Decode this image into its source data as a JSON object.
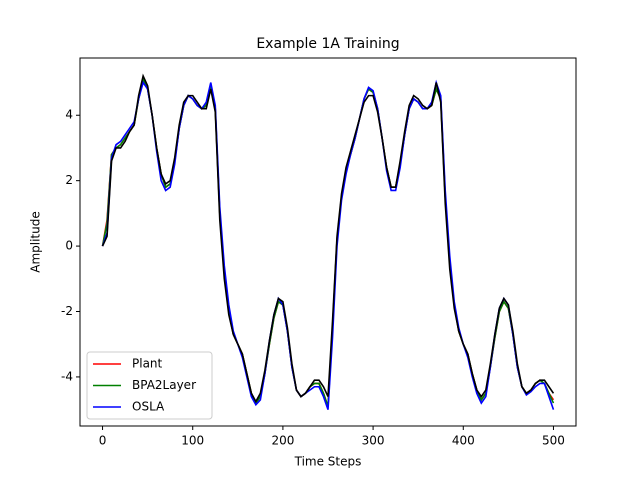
{
  "chart_data": {
    "type": "line",
    "title": "Example 1A Training",
    "xlabel": "Time Steps",
    "ylabel": "Amplitude",
    "x": [
      0,
      5,
      10,
      15,
      20,
      25,
      30,
      35,
      40,
      45,
      50,
      55,
      60,
      65,
      70,
      75,
      80,
      85,
      90,
      95,
      100,
      105,
      110,
      115,
      120,
      125,
      130,
      135,
      140,
      145,
      150,
      155,
      160,
      165,
      170,
      175,
      180,
      185,
      190,
      195,
      200,
      205,
      210,
      215,
      220,
      225,
      230,
      235,
      240,
      245,
      250,
      255,
      260,
      265,
      270,
      275,
      280,
      285,
      290,
      295,
      300,
      305,
      310,
      315,
      320,
      325,
      330,
      335,
      340,
      345,
      350,
      355,
      360,
      365,
      370,
      375,
      380,
      385,
      390,
      395,
      400,
      405,
      410,
      415,
      420,
      425,
      430,
      435,
      440,
      445,
      450,
      455,
      460,
      465,
      470,
      475,
      480,
      485,
      490,
      495,
      500
    ],
    "series": [
      {
        "name": "Plant",
        "color": "#ff0000",
        "values": [
          0,
          0.8,
          2.8,
          3.0,
          3.1,
          3.3,
          3.5,
          3.7,
          4.5,
          5.1,
          4.8,
          4.0,
          3.0,
          2.2,
          1.8,
          1.9,
          2.6,
          3.6,
          4.3,
          4.6,
          4.5,
          4.3,
          4.2,
          4.3,
          4.9,
          4.2,
          1.0,
          -0.8,
          -2.0,
          -2.7,
          -3.0,
          -3.3,
          -3.9,
          -4.5,
          -4.8,
          -4.6,
          -3.9,
          -3.0,
          -2.2,
          -1.7,
          -1.8,
          -2.6,
          -3.7,
          -4.4,
          -4.6,
          -4.5,
          -4.3,
          -4.2,
          -4.2,
          -4.5,
          -4.9,
          -2.5,
          0.2,
          1.5,
          2.3,
          2.8,
          3.3,
          3.9,
          4.5,
          4.8,
          4.7,
          4.2,
          3.3,
          2.4,
          1.8,
          1.8,
          2.5,
          3.4,
          4.2,
          4.5,
          4.4,
          4.2,
          4.2,
          4.3,
          4.8,
          4.5,
          1.5,
          -0.5,
          -1.8,
          -2.6,
          -3.0,
          -3.3,
          -3.9,
          -4.4,
          -4.7,
          -4.5,
          -3.7,
          -2.8,
          -2.0,
          -1.7,
          -1.9,
          -2.7,
          -3.7,
          -4.3,
          -4.5,
          -4.4,
          -4.2,
          -4.1,
          -4.2,
          -4.5,
          -4.7
        ]
      },
      {
        "name": "BPA2Layer",
        "color": "#008000",
        "values": [
          0,
          0.7,
          2.8,
          3.0,
          3.1,
          3.3,
          3.5,
          3.7,
          4.5,
          5.1,
          4.8,
          4.0,
          3.0,
          2.2,
          1.8,
          1.9,
          2.6,
          3.6,
          4.3,
          4.6,
          4.5,
          4.3,
          4.2,
          4.3,
          4.9,
          4.2,
          1.0,
          -0.8,
          -2.0,
          -2.7,
          -3.0,
          -3.3,
          -3.9,
          -4.5,
          -4.8,
          -4.6,
          -3.9,
          -3.0,
          -2.2,
          -1.7,
          -1.8,
          -2.6,
          -3.7,
          -4.4,
          -4.6,
          -4.5,
          -4.3,
          -4.2,
          -4.2,
          -4.5,
          -4.9,
          -2.5,
          0.2,
          1.5,
          2.3,
          2.8,
          3.3,
          3.9,
          4.5,
          4.8,
          4.7,
          4.2,
          3.3,
          2.4,
          1.8,
          1.8,
          2.5,
          3.4,
          4.2,
          4.5,
          4.4,
          4.2,
          4.2,
          4.3,
          4.8,
          4.5,
          1.5,
          -0.5,
          -1.8,
          -2.6,
          -3.0,
          -3.3,
          -3.9,
          -4.4,
          -4.7,
          -4.5,
          -3.7,
          -2.8,
          -2.0,
          -1.7,
          -1.9,
          -2.7,
          -3.7,
          -4.3,
          -4.5,
          -4.4,
          -4.2,
          -4.1,
          -4.2,
          -4.5,
          -4.8
        ]
      },
      {
        "name": "OSLA",
        "color": "#0000ff",
        "values": [
          0,
          0.4,
          2.7,
          3.1,
          3.2,
          3.4,
          3.6,
          3.8,
          4.5,
          5.0,
          4.8,
          4.0,
          2.9,
          2.0,
          1.7,
          1.8,
          2.5,
          3.6,
          4.3,
          4.6,
          4.5,
          4.3,
          4.2,
          4.4,
          5.0,
          4.3,
          1.2,
          -0.6,
          -1.8,
          -2.6,
          -3.0,
          -3.4,
          -4.0,
          -4.6,
          -4.85,
          -4.7,
          -3.9,
          -2.9,
          -2.1,
          -1.6,
          -1.8,
          -2.6,
          -3.7,
          -4.4,
          -4.6,
          -4.5,
          -4.4,
          -4.3,
          -4.3,
          -4.6,
          -5.0,
          -2.8,
          0.0,
          1.4,
          2.2,
          2.8,
          3.3,
          3.9,
          4.5,
          4.85,
          4.75,
          4.2,
          3.3,
          2.3,
          1.7,
          1.7,
          2.4,
          3.4,
          4.2,
          4.5,
          4.4,
          4.2,
          4.2,
          4.4,
          5.0,
          4.6,
          1.7,
          -0.3,
          -1.7,
          -2.5,
          -3.0,
          -3.4,
          -4.0,
          -4.5,
          -4.8,
          -4.6,
          -3.7,
          -2.7,
          -1.9,
          -1.6,
          -1.8,
          -2.7,
          -3.7,
          -4.3,
          -4.55,
          -4.45,
          -4.3,
          -4.2,
          -4.2,
          -4.6,
          -5.0
        ]
      },
      {
        "color": "#000000",
        "values": [
          0,
          0.3,
          2.6,
          3.0,
          3.0,
          3.2,
          3.5,
          3.7,
          4.6,
          5.2,
          4.9,
          4.0,
          3.0,
          2.2,
          1.9,
          2.0,
          2.7,
          3.7,
          4.4,
          4.6,
          4.6,
          4.4,
          4.2,
          4.2,
          4.8,
          4.1,
          0.8,
          -1.0,
          -2.1,
          -2.7,
          -3.0,
          -3.3,
          -3.9,
          -4.5,
          -4.75,
          -4.5,
          -3.8,
          -2.9,
          -2.1,
          -1.6,
          -1.7,
          -2.5,
          -3.6,
          -4.4,
          -4.6,
          -4.5,
          -4.3,
          -4.1,
          -4.1,
          -4.3,
          -4.6,
          -2.3,
          0.3,
          1.6,
          2.4,
          2.9,
          3.4,
          3.9,
          4.4,
          4.6,
          4.6,
          4.1,
          3.3,
          2.4,
          1.8,
          1.8,
          2.6,
          3.5,
          4.3,
          4.6,
          4.5,
          4.3,
          4.2,
          4.3,
          5.0,
          4.4,
          1.3,
          -0.7,
          -1.9,
          -2.6,
          -3.0,
          -3.3,
          -3.9,
          -4.4,
          -4.6,
          -4.4,
          -3.6,
          -2.7,
          -1.9,
          -1.6,
          -1.8,
          -2.6,
          -3.6,
          -4.3,
          -4.5,
          -4.4,
          -4.2,
          -4.1,
          -4.1,
          -4.3,
          -4.5
        ]
      }
    ],
    "xlim": [
      -25,
      525
    ],
    "ylim": [
      -5.5,
      5.75
    ],
    "xticks": [
      0,
      100,
      200,
      300,
      400,
      500
    ],
    "yticks": [
      -4,
      -2,
      0,
      2,
      4
    ],
    "legend": "lower left"
  }
}
